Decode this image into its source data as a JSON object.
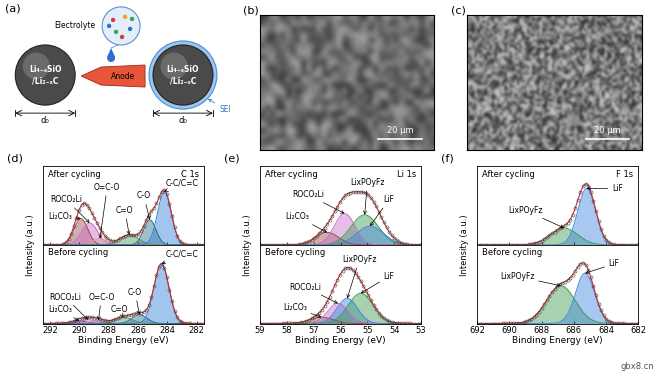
{
  "schematic": {
    "label": "(a)",
    "particle": [
      "Li₄₋ₓSiO",
      "/Li₂₋ₓC"
    ],
    "diameter": "d₀",
    "electrolyte": "Electrolyte",
    "anode": "Anode",
    "sei": "SEI"
  },
  "images": [
    {
      "label": "(b)",
      "scale_bar": "20 μm"
    },
    {
      "label": "(c)",
      "scale_bar": "20 μm"
    }
  ],
  "chart_data": [
    {
      "type": "line",
      "label": "(d)",
      "element": "C 1s",
      "xlabel": "Binding Energy (eV)",
      "ylabel": "Intensity (a.u.)",
      "xlim": [
        292.5,
        281.5
      ],
      "xticks": [
        292,
        290,
        288,
        286,
        284,
        282
      ],
      "ylim": [
        0,
        1.25
      ],
      "yticks": [],
      "tick_labels": "x",
      "subplots": [
        {
          "title": "After cycling",
          "series": [
            {
              "name": "Li₂CO₃",
              "color": "#9b4a4a",
              "center": 289.9,
              "height": 0.42,
              "fwhm": 1.1
            },
            {
              "name": "ROCO₂Li",
              "color": "#c86ec8",
              "center": 289.3,
              "height": 0.35,
              "fwhm": 1.3
            },
            {
              "name": "O=C-O",
              "color": "#d99a9a",
              "center": 288.6,
              "height": 0.1,
              "fwhm": 1.2
            },
            {
              "name": "C=O",
              "color": "#4f9a5f",
              "center": 286.6,
              "height": 0.16,
              "fwhm": 1.5
            },
            {
              "name": "C-O",
              "color": "#2b6f8a",
              "center": 285.2,
              "height": 0.4,
              "fwhm": 1.0
            },
            {
              "name": "C-C/C=C",
              "color": "#2f80d8",
              "center": 284.2,
              "height": 0.85,
              "fwhm": 1.1
            }
          ]
        },
        {
          "title": "Before cycling",
          "series": [
            {
              "name": "Li₂CO₃",
              "color": "#9b4a4a",
              "center": 290.0,
              "height": 0.04,
              "fwhm": 1.2
            },
            {
              "name": "ROCO₂Li",
              "color": "#c86ec8",
              "center": 289.4,
              "height": 0.06,
              "fwhm": 1.3
            },
            {
              "name": "O=C-O",
              "color": "#d99a9a",
              "center": 288.7,
              "height": 0.05,
              "fwhm": 1.2
            },
            {
              "name": "C=O",
              "color": "#4f9a5f",
              "center": 287.0,
              "height": 0.1,
              "fwhm": 1.4
            },
            {
              "name": "C-O",
              "color": "#2b6f8a",
              "center": 285.9,
              "height": 0.14,
              "fwhm": 1.2
            },
            {
              "name": "C-C/C=C",
              "color": "#2f80d8",
              "center": 284.4,
              "height": 0.95,
              "fwhm": 1.2
            }
          ]
        }
      ]
    },
    {
      "type": "line",
      "label": "(e)",
      "element": "Li 1s",
      "xlabel": "Binding Energy (eV)",
      "ylabel": "Intensity (a.u.)",
      "xlim": [
        59,
        53
      ],
      "xticks": [
        59,
        58,
        57,
        56,
        55,
        54,
        53
      ],
      "ylim": [
        0,
        1.25
      ],
      "yticks": [],
      "tick_labels": "x",
      "subplots": [
        {
          "title": "After cycling",
          "series": [
            {
              "name": "Li₂CO₃",
              "color": "#9b4a4a",
              "center": 56.5,
              "height": 0.2,
              "fwhm": 1.0
            },
            {
              "name": "ROCO₂Li",
              "color": "#c86ec8",
              "center": 55.85,
              "height": 0.5,
              "fwhm": 0.9
            },
            {
              "name": "LixPOyFz",
              "color": "#3d9a4f",
              "center": 55.1,
              "height": 0.48,
              "fwhm": 1.2
            },
            {
              "name": "LiF",
              "color": "#3f86e0",
              "center": 54.9,
              "height": 0.3,
              "fwhm": 1.2
            }
          ]
        },
        {
          "title": "Before cycling",
          "series": [
            {
              "name": "Li₂CO₃",
              "color": "#9b4a4a",
              "center": 56.7,
              "height": 0.1,
              "fwhm": 1.0
            },
            {
              "name": "ROCO₂Li",
              "color": "#c86ec8",
              "center": 56.1,
              "height": 0.32,
              "fwhm": 0.9
            },
            {
              "name": "LixPOyFz",
              "color": "#3f86e0",
              "center": 55.75,
              "height": 0.4,
              "fwhm": 0.9
            },
            {
              "name": "LiF",
              "color": "#3d9a4f",
              "center": 55.25,
              "height": 0.48,
              "fwhm": 1.1
            }
          ]
        }
      ]
    },
    {
      "type": "line",
      "label": "(f)",
      "element": "F 1s",
      "xlabel": "Binding Energy (eV)",
      "ylabel": "Intensity (a.u.)",
      "xlim": [
        692,
        682
      ],
      "xticks": [
        692,
        690,
        688,
        686,
        684,
        682
      ],
      "ylim": [
        0,
        1.25
      ],
      "yticks": [],
      "tick_labels": "x",
      "subplots": [
        {
          "title": "After cycling",
          "series": [
            {
              "name": "LixPOyFz",
              "color": "#3d9a4f",
              "center": 686.6,
              "height": 0.27,
              "fwhm": 2.0
            },
            {
              "name": "LiF",
              "color": "#3f86e0",
              "center": 685.2,
              "height": 0.9,
              "fwhm": 1.3
            }
          ]
        },
        {
          "title": "Before cycling",
          "series": [
            {
              "name": "LixPOyFz",
              "color": "#3d9a4f",
              "center": 686.8,
              "height": 0.6,
              "fwhm": 2.1
            },
            {
              "name": "LiF",
              "color": "#3f86e0",
              "center": 685.3,
              "height": 0.8,
              "fwhm": 1.4
            }
          ]
        }
      ]
    }
  ],
  "watermark": "gbx8.cn"
}
